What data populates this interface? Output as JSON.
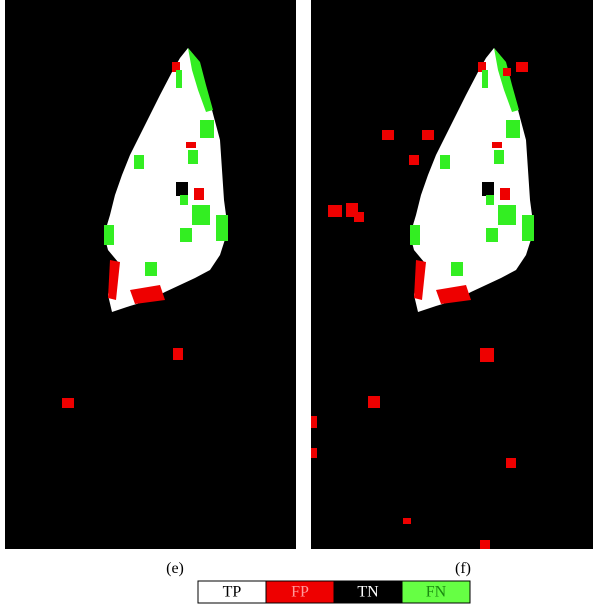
{
  "panels": [
    {
      "caption": "(e)"
    },
    {
      "caption": "(f)"
    }
  ],
  "legend": [
    {
      "label": "TP"
    },
    {
      "label": "FP"
    },
    {
      "label": "TN"
    },
    {
      "label": "FN"
    }
  ]
}
